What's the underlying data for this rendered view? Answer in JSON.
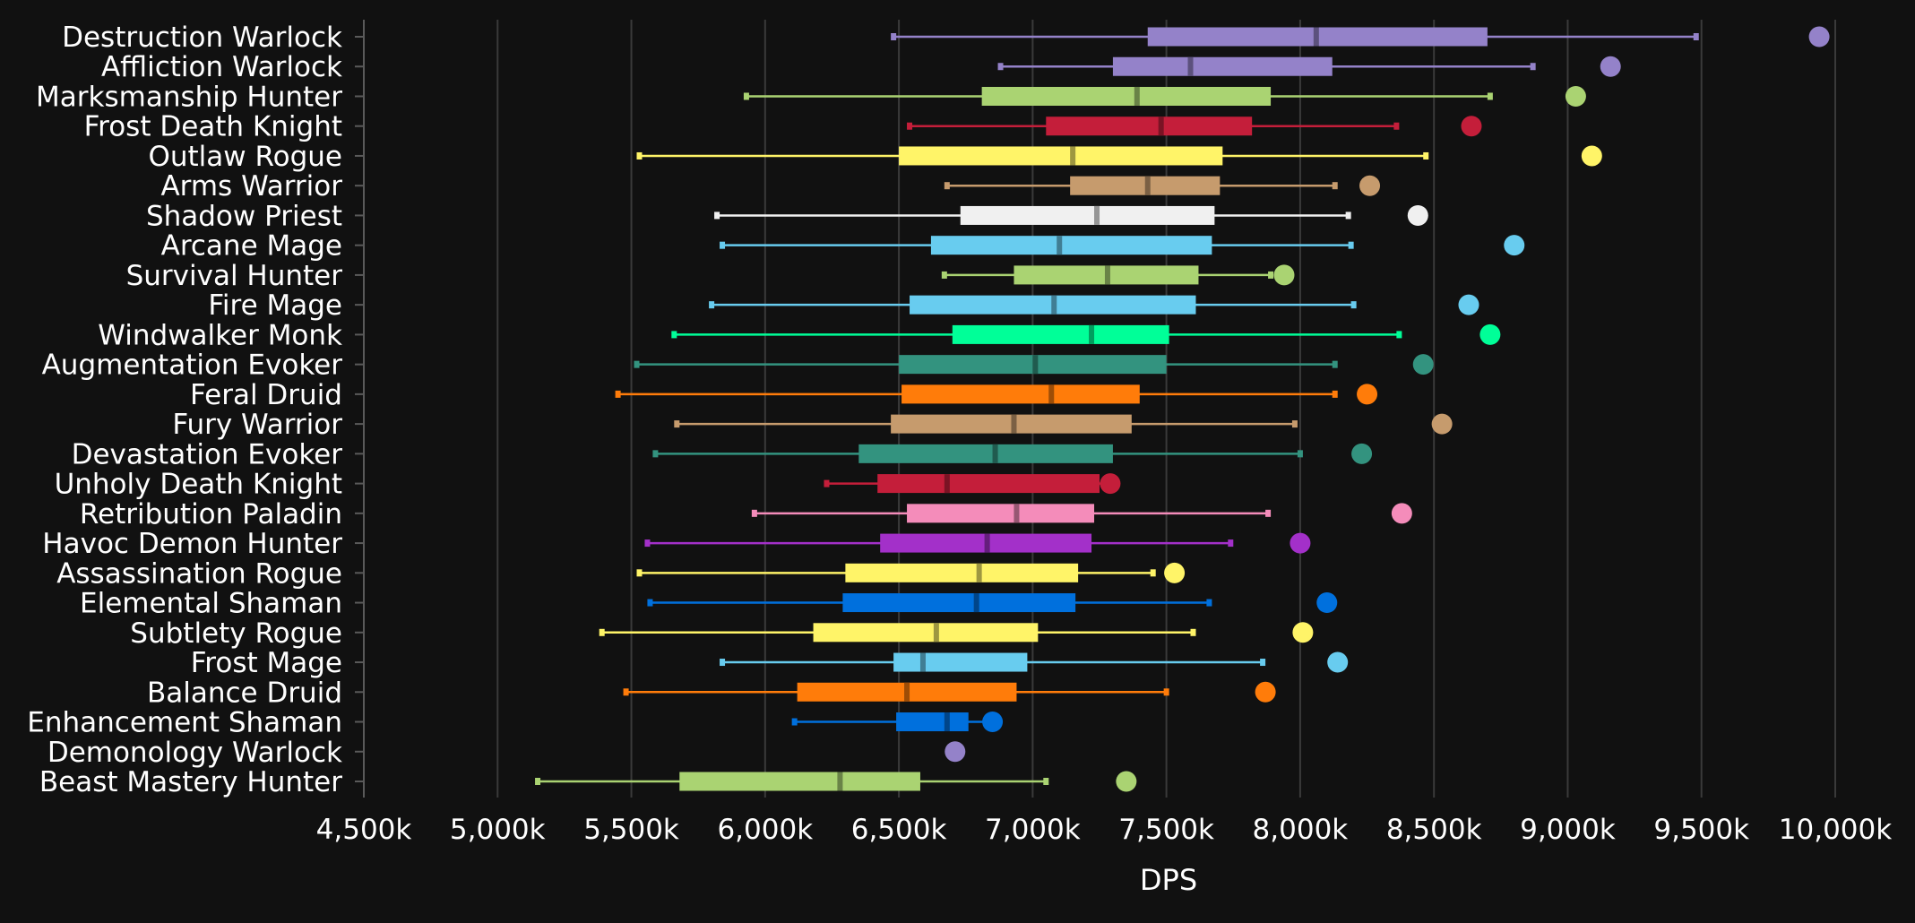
{
  "chart_data": {
    "type": "box",
    "orientation": "horizontal",
    "title": "",
    "xlabel": "DPS",
    "ylabel": "",
    "xlim": [
      4500,
      10000
    ],
    "x_ticks": [
      4500,
      5000,
      5500,
      6000,
      6500,
      7000,
      7500,
      8000,
      8500,
      9000,
      9500,
      10000
    ],
    "x_tick_labels": [
      "4,500k",
      "5,000k",
      "5,500k",
      "6,000k",
      "6,500k",
      "7,000k",
      "7,500k",
      "8,000k",
      "8,500k",
      "9,000k",
      "9,500k",
      "10,000k"
    ],
    "grid": "vertical",
    "legend": "none",
    "categories": [
      "Destruction Warlock",
      "Affliction Warlock",
      "Marksmanship Hunter",
      "Frost Death Knight",
      "Outlaw Rogue",
      "Arms Warrior",
      "Shadow Priest",
      "Arcane Mage",
      "Survival Hunter",
      "Fire Mage",
      "Windwalker Monk",
      "Augmentation Evoker",
      "Feral Druid",
      "Fury Warrior",
      "Devastation Evoker",
      "Unholy Death Knight",
      "Retribution Paladin",
      "Havoc Demon Hunter",
      "Assassination Rogue",
      "Elemental Shaman",
      "Subtlety Rogue",
      "Frost Mage",
      "Balance Druid",
      "Enhancement Shaman",
      "Demonology Warlock",
      "Beast Mastery Hunter"
    ],
    "colors": [
      "#9482c9",
      "#9482c9",
      "#aad372",
      "#c41e3a",
      "#fff468",
      "#c69b6d",
      "#f0f0f0",
      "#68ccef",
      "#aad372",
      "#68ccef",
      "#00ff98",
      "#33937f",
      "#ff7c0a",
      "#c69b6d",
      "#33937f",
      "#c41e3a",
      "#f48cba",
      "#a330c9",
      "#fff468",
      "#0070dd",
      "#fff468",
      "#68ccef",
      "#ff7c0a",
      "#0070dd",
      "#9482c9",
      "#aad372"
    ],
    "min": [
      6480,
      6880,
      5930,
      6540,
      5530,
      6680,
      5820,
      5840,
      6670,
      5800,
      5660,
      5520,
      5450,
      5670,
      5590,
      6230,
      5960,
      5560,
      5530,
      5570,
      5390,
      5840,
      5480,
      6110,
      6710,
      5150
    ],
    "q1": [
      7430,
      7300,
      6810,
      7050,
      6500,
      7140,
      6730,
      6620,
      6930,
      6540,
      6700,
      6500,
      6510,
      6470,
      6350,
      6420,
      6530,
      6430,
      6300,
      6290,
      6180,
      6480,
      6120,
      6490,
      null,
      5680
    ],
    "median": [
      8060,
      7590,
      7390,
      7480,
      7150,
      7430,
      7240,
      7100,
      7280,
      7080,
      7220,
      7010,
      7070,
      6930,
      6860,
      6680,
      6940,
      6830,
      6800,
      6790,
      6640,
      6590,
      6530,
      6680,
      null,
      6280
    ],
    "q3": [
      8700,
      8120,
      7890,
      7820,
      7710,
      7700,
      7680,
      7670,
      7620,
      7610,
      7510,
      7500,
      7400,
      7370,
      7300,
      7250,
      7230,
      7220,
      7170,
      7160,
      7020,
      6980,
      6940,
      6760,
      null,
      6580
    ],
    "max": [
      9480,
      8870,
      8710,
      8360,
      8470,
      8130,
      8180,
      8190,
      7890,
      8200,
      8370,
      8130,
      8130,
      7980,
      8000,
      7280,
      7880,
      7740,
      7450,
      7660,
      7600,
      7860,
      7500,
      6850,
      6730,
      7050
    ],
    "top": [
      9940,
      9160,
      9030,
      8640,
      9090,
      8260,
      8440,
      8800,
      7940,
      8630,
      8710,
      8460,
      8250,
      8530,
      8230,
      7290,
      8380,
      8000,
      7530,
      8100,
      8010,
      8140,
      7870,
      6850,
      6710,
      7350
    ]
  }
}
